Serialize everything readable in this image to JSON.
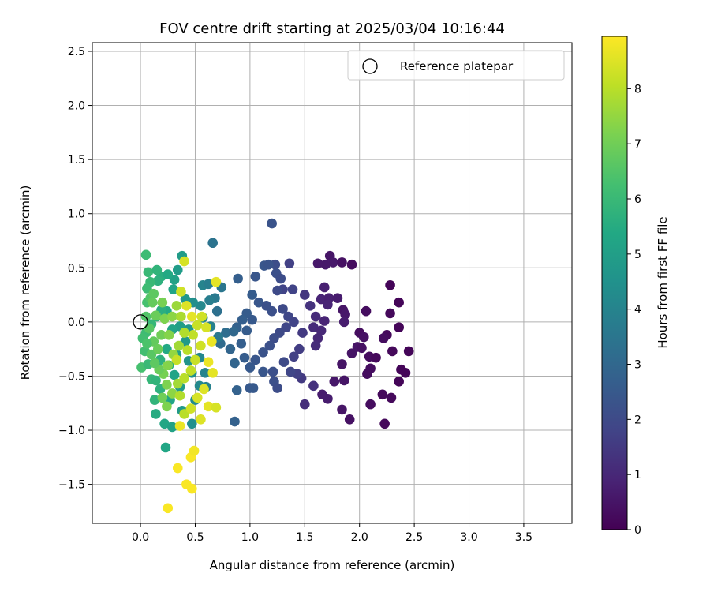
{
  "chart_data": {
    "type": "scatter",
    "title": "FOV centre drift starting at 2025/03/04 10:16:44",
    "xlabel": "Angular distance from reference (arcmin)",
    "ylabel": "Rotation from reference (arcmin)",
    "xlim": [
      -0.44,
      3.94
    ],
    "ylim": [
      -1.86,
      2.58
    ],
    "xticks": [
      "0.0",
      "0.5",
      "1.0",
      "1.5",
      "2.0",
      "2.5",
      "3.0",
      "3.5"
    ],
    "yticks": [
      "−1.5",
      "−1.0",
      "−0.5",
      "0.0",
      "0.5",
      "1.0",
      "1.5",
      "2.0",
      "2.5"
    ],
    "grid": true,
    "legend": {
      "placement": "top-right",
      "label": "Reference platepar"
    },
    "reference_point": {
      "x": 0.0,
      "y": 0.0
    },
    "colorbar": {
      "label": "Hours from first FF file",
      "colormap": "viridis",
      "range": [
        0,
        8.95
      ],
      "ticks": [
        "0",
        "1",
        "2",
        "3",
        "4",
        "5",
        "6",
        "7",
        "8"
      ]
    },
    "points": [
      {
        "x": 1.73,
        "y": 0.61,
        "h": 0.5
      },
      {
        "x": 1.62,
        "y": 0.54,
        "h": 0.6
      },
      {
        "x": 1.76,
        "y": 0.55,
        "h": 0.6
      },
      {
        "x": 1.84,
        "y": 0.55,
        "h": 0.4
      },
      {
        "x": 1.93,
        "y": 0.53,
        "h": 0.3
      },
      {
        "x": 1.69,
        "y": 0.53,
        "h": 0.6
      },
      {
        "x": 1.68,
        "y": 0.32,
        "h": 0.8
      },
      {
        "x": 1.65,
        "y": 0.21,
        "h": 0.9
      },
      {
        "x": 1.72,
        "y": 0.22,
        "h": 0.8
      },
      {
        "x": 1.8,
        "y": 0.22,
        "h": 0.7
      },
      {
        "x": 1.71,
        "y": 0.16,
        "h": 0.9
      },
      {
        "x": 1.85,
        "y": 0.11,
        "h": 0.5
      },
      {
        "x": 1.87,
        "y": 0.07,
        "h": 0.6
      },
      {
        "x": 1.86,
        "y": 0.0,
        "h": 0.7
      },
      {
        "x": 2.06,
        "y": 0.1,
        "h": 0.3
      },
      {
        "x": 2.28,
        "y": 0.34,
        "h": 0.1
      },
      {
        "x": 2.36,
        "y": 0.18,
        "h": 0.1
      },
      {
        "x": 2.28,
        "y": 0.08,
        "h": 0.2
      },
      {
        "x": 2.36,
        "y": -0.05,
        "h": 0.1
      },
      {
        "x": 2.25,
        "y": -0.12,
        "h": 0.2
      },
      {
        "x": 2.22,
        "y": -0.15,
        "h": 0.3
      },
      {
        "x": 2.0,
        "y": -0.1,
        "h": 0.3
      },
      {
        "x": 2.04,
        "y": -0.14,
        "h": 0.4
      },
      {
        "x": 1.98,
        "y": -0.23,
        "h": 0.5
      },
      {
        "x": 2.02,
        "y": -0.24,
        "h": 0.4
      },
      {
        "x": 1.93,
        "y": -0.29,
        "h": 0.5
      },
      {
        "x": 2.09,
        "y": -0.32,
        "h": 0.3
      },
      {
        "x": 2.15,
        "y": -0.33,
        "h": 0.2
      },
      {
        "x": 2.3,
        "y": -0.27,
        "h": 0.2
      },
      {
        "x": 2.45,
        "y": -0.27,
        "h": 0.1
      },
      {
        "x": 2.38,
        "y": -0.44,
        "h": 0.1
      },
      {
        "x": 2.42,
        "y": -0.47,
        "h": 0.1
      },
      {
        "x": 2.36,
        "y": -0.55,
        "h": 0.1
      },
      {
        "x": 2.1,
        "y": -0.43,
        "h": 0.3
      },
      {
        "x": 2.07,
        "y": -0.48,
        "h": 0.3
      },
      {
        "x": 1.84,
        "y": -0.39,
        "h": 0.5
      },
      {
        "x": 1.86,
        "y": -0.54,
        "h": 0.5
      },
      {
        "x": 1.77,
        "y": -0.55,
        "h": 0.6
      },
      {
        "x": 1.71,
        "y": -0.71,
        "h": 0.7
      },
      {
        "x": 1.66,
        "y": -0.67,
        "h": 0.7
      },
      {
        "x": 1.84,
        "y": -0.81,
        "h": 0.5
      },
      {
        "x": 1.91,
        "y": -0.9,
        "h": 0.4
      },
      {
        "x": 2.1,
        "y": -0.76,
        "h": 0.3
      },
      {
        "x": 2.21,
        "y": -0.67,
        "h": 0.2
      },
      {
        "x": 2.29,
        "y": -0.7,
        "h": 0.2
      },
      {
        "x": 2.23,
        "y": -0.94,
        "h": 0.2
      },
      {
        "x": 1.58,
        "y": -0.59,
        "h": 1.3
      },
      {
        "x": 1.5,
        "y": -0.76,
        "h": 1.2
      },
      {
        "x": 1.47,
        "y": -0.52,
        "h": 1.5
      },
      {
        "x": 1.43,
        "y": -0.48,
        "h": 1.7
      },
      {
        "x": 1.58,
        "y": -0.05,
        "h": 1.1
      },
      {
        "x": 1.62,
        "y": -0.15,
        "h": 1.0
      },
      {
        "x": 1.6,
        "y": -0.22,
        "h": 1.1
      },
      {
        "x": 1.65,
        "y": -0.08,
        "h": 1.0
      },
      {
        "x": 1.68,
        "y": 0.01,
        "h": 0.9
      },
      {
        "x": 1.6,
        "y": 0.05,
        "h": 1.1
      },
      {
        "x": 1.55,
        "y": 0.15,
        "h": 1.3
      },
      {
        "x": 1.5,
        "y": 0.25,
        "h": 1.4
      },
      {
        "x": 1.48,
        "y": -0.1,
        "h": 1.5
      },
      {
        "x": 1.45,
        "y": -0.25,
        "h": 1.6
      },
      {
        "x": 1.4,
        "y": -0.32,
        "h": 1.7
      },
      {
        "x": 1.36,
        "y": 0.54,
        "h": 1.7
      },
      {
        "x": 1.39,
        "y": 0.3,
        "h": 1.8
      },
      {
        "x": 1.3,
        "y": 0.3,
        "h": 1.8
      },
      {
        "x": 1.25,
        "y": 0.29,
        "h": 2.0
      },
      {
        "x": 1.23,
        "y": 0.53,
        "h": 2.1
      },
      {
        "x": 1.13,
        "y": 0.52,
        "h": 2.4
      },
      {
        "x": 1.17,
        "y": 0.53,
        "h": 2.3
      },
      {
        "x": 1.24,
        "y": 0.45,
        "h": 2.2
      },
      {
        "x": 1.28,
        "y": 0.4,
        "h": 2.1
      },
      {
        "x": 1.05,
        "y": 0.42,
        "h": 2.4
      },
      {
        "x": 0.89,
        "y": 0.4,
        "h": 2.7
      },
      {
        "x": 1.2,
        "y": 0.91,
        "h": 2.3
      },
      {
        "x": 1.02,
        "y": 0.25,
        "h": 2.6
      },
      {
        "x": 1.08,
        "y": 0.18,
        "h": 2.4
      },
      {
        "x": 1.15,
        "y": 0.15,
        "h": 2.2
      },
      {
        "x": 1.2,
        "y": 0.1,
        "h": 2.2
      },
      {
        "x": 1.3,
        "y": 0.12,
        "h": 2.0
      },
      {
        "x": 1.35,
        "y": 0.05,
        "h": 1.9
      },
      {
        "x": 1.4,
        "y": 0.0,
        "h": 1.8
      },
      {
        "x": 1.33,
        "y": -0.05,
        "h": 1.9
      },
      {
        "x": 1.27,
        "y": -0.1,
        "h": 2.0
      },
      {
        "x": 1.22,
        "y": -0.15,
        "h": 2.1
      },
      {
        "x": 1.18,
        "y": -0.22,
        "h": 2.2
      },
      {
        "x": 1.12,
        "y": -0.28,
        "h": 2.3
      },
      {
        "x": 1.05,
        "y": -0.35,
        "h": 2.4
      },
      {
        "x": 1.0,
        "y": -0.42,
        "h": 2.5
      },
      {
        "x": 0.95,
        "y": -0.33,
        "h": 2.6
      },
      {
        "x": 0.92,
        "y": -0.2,
        "h": 2.7
      },
      {
        "x": 0.97,
        "y": -0.08,
        "h": 2.6
      },
      {
        "x": 1.02,
        "y": 0.02,
        "h": 2.5
      },
      {
        "x": 0.97,
        "y": 0.08,
        "h": 2.6
      },
      {
        "x": 0.93,
        "y": 0.02,
        "h": 2.7
      },
      {
        "x": 0.88,
        "y": -0.05,
        "h": 2.8
      },
      {
        "x": 1.12,
        "y": -0.46,
        "h": 2.4
      },
      {
        "x": 1.21,
        "y": -0.46,
        "h": 2.2
      },
      {
        "x": 1.31,
        "y": -0.37,
        "h": 2.0
      },
      {
        "x": 1.37,
        "y": -0.46,
        "h": 1.9
      },
      {
        "x": 1.22,
        "y": -0.55,
        "h": 2.2
      },
      {
        "x": 1.25,
        "y": -0.61,
        "h": 2.1
      },
      {
        "x": 1.0,
        "y": -0.61,
        "h": 2.5
      },
      {
        "x": 1.03,
        "y": -0.61,
        "h": 2.5
      },
      {
        "x": 0.88,
        "y": -0.63,
        "h": 2.8
      },
      {
        "x": 0.86,
        "y": -0.92,
        "h": 2.8
      },
      {
        "x": 0.73,
        "y": -0.2,
        "h": 3.1
      },
      {
        "x": 0.82,
        "y": -0.25,
        "h": 2.9
      },
      {
        "x": 0.86,
        "y": -0.38,
        "h": 2.9
      },
      {
        "x": 0.78,
        "y": -0.1,
        "h": 3.2
      },
      {
        "x": 0.85,
        "y": -0.09,
        "h": 3.0
      },
      {
        "x": 0.7,
        "y": 0.1,
        "h": 3.3
      },
      {
        "x": 0.74,
        "y": 0.32,
        "h": 3.5
      },
      {
        "x": 0.66,
        "y": 0.73,
        "h": 3.4
      },
      {
        "x": 0.68,
        "y": 0.22,
        "h": 3.6
      },
      {
        "x": 0.57,
        "y": 0.34,
        "h": 4.0
      },
      {
        "x": 0.62,
        "y": 0.35,
        "h": 3.8
      },
      {
        "x": 0.63,
        "y": 0.2,
        "h": 3.8
      },
      {
        "x": 0.55,
        "y": 0.15,
        "h": 4.2
      },
      {
        "x": 0.48,
        "y": 0.18,
        "h": 4.4
      },
      {
        "x": 0.41,
        "y": 0.21,
        "h": 4.7
      },
      {
        "x": 0.57,
        "y": 0.04,
        "h": 4.1
      },
      {
        "x": 0.64,
        "y": -0.04,
        "h": 3.9
      },
      {
        "x": 0.71,
        "y": -0.14,
        "h": 3.6
      },
      {
        "x": 0.54,
        "y": -0.33,
        "h": 4.1
      },
      {
        "x": 0.59,
        "y": -0.47,
        "h": 4.0
      },
      {
        "x": 0.6,
        "y": -0.6,
        "h": 3.9
      },
      {
        "x": 0.47,
        "y": -0.47,
        "h": 4.4
      },
      {
        "x": 0.44,
        "y": -0.36,
        "h": 4.6
      },
      {
        "x": 0.41,
        "y": -0.18,
        "h": 4.8
      },
      {
        "x": 0.44,
        "y": -0.07,
        "h": 4.7
      },
      {
        "x": 0.36,
        "y": -0.04,
        "h": 5.0
      },
      {
        "x": 0.29,
        "y": -0.07,
        "h": 5.2
      },
      {
        "x": 0.24,
        "y": 0.1,
        "h": 5.4
      },
      {
        "x": 0.3,
        "y": 0.3,
        "h": 5.2
      },
      {
        "x": 0.31,
        "y": 0.39,
        "h": 5.1
      },
      {
        "x": 0.38,
        "y": 0.61,
        "h": 4.9
      },
      {
        "x": 0.34,
        "y": 0.48,
        "h": 4.9
      },
      {
        "x": 0.19,
        "y": 0.42,
        "h": 5.6
      },
      {
        "x": 0.16,
        "y": 0.38,
        "h": 5.7
      },
      {
        "x": 0.09,
        "y": 0.37,
        "h": 6.0
      },
      {
        "x": 0.06,
        "y": 0.31,
        "h": 6.1
      },
      {
        "x": 0.07,
        "y": 0.46,
        "h": 6.0
      },
      {
        "x": 0.05,
        "y": 0.62,
        "h": 6.1
      },
      {
        "x": 0.15,
        "y": 0.48,
        "h": 5.8
      },
      {
        "x": 0.25,
        "y": 0.44,
        "h": 5.4
      },
      {
        "x": 0.19,
        "y": 0.11,
        "h": 5.6
      },
      {
        "x": 0.15,
        "y": 0.05,
        "h": 5.8
      },
      {
        "x": 0.1,
        "y": -0.02,
        "h": 5.9
      },
      {
        "x": 0.05,
        "y": -0.1,
        "h": 6.1
      },
      {
        "x": 0.02,
        "y": -0.15,
        "h": 6.2
      },
      {
        "x": 0.04,
        "y": -0.27,
        "h": 6.2
      },
      {
        "x": 0.01,
        "y": -0.42,
        "h": 6.3
      },
      {
        "x": 0.07,
        "y": -0.39,
        "h": 6.0
      },
      {
        "x": 0.1,
        "y": -0.53,
        "h": 5.9
      },
      {
        "x": 0.14,
        "y": -0.54,
        "h": 5.8
      },
      {
        "x": 0.18,
        "y": -0.62,
        "h": 5.7
      },
      {
        "x": 0.13,
        "y": -0.72,
        "h": 5.8
      },
      {
        "x": 0.14,
        "y": -0.85,
        "h": 5.5
      },
      {
        "x": 0.22,
        "y": -0.94,
        "h": 5.3
      },
      {
        "x": 0.29,
        "y": -0.97,
        "h": 5.1
      },
      {
        "x": 0.23,
        "y": -1.16,
        "h": 5.3
      },
      {
        "x": 0.18,
        "y": -0.35,
        "h": 5.7
      },
      {
        "x": 0.24,
        "y": -0.25,
        "h": 5.4
      },
      {
        "x": 0.26,
        "y": -0.4,
        "h": 5.5
      },
      {
        "x": 0.31,
        "y": -0.49,
        "h": 5.2
      },
      {
        "x": 0.33,
        "y": -0.3,
        "h": 5.0
      },
      {
        "x": 0.27,
        "y": -0.72,
        "h": 5.2
      },
      {
        "x": 0.36,
        "y": -0.6,
        "h": 4.9
      },
      {
        "x": 0.5,
        "y": -0.72,
        "h": 4.3
      },
      {
        "x": 0.54,
        "y": -0.59,
        "h": 4.2
      },
      {
        "x": 0.47,
        "y": -0.94,
        "h": 4.4
      },
      {
        "x": 0.38,
        "y": -0.82,
        "h": 4.8
      },
      {
        "x": 0.06,
        "y": 0.18,
        "h": 6.3
      },
      {
        "x": 0.09,
        "y": 0.22,
        "h": 6.5
      },
      {
        "x": 0.12,
        "y": 0.26,
        "h": 6.7
      },
      {
        "x": 0.11,
        "y": 0.18,
        "h": 6.8
      },
      {
        "x": 0.05,
        "y": 0.05,
        "h": 6.5
      },
      {
        "x": 0.08,
        "y": -0.06,
        "h": 6.6
      },
      {
        "x": 0.12,
        "y": -0.18,
        "h": 6.8
      },
      {
        "x": 0.06,
        "y": -0.2,
        "h": 6.4
      },
      {
        "x": 0.1,
        "y": -0.3,
        "h": 6.6
      },
      {
        "x": 0.16,
        "y": -0.25,
        "h": 6.9
      },
      {
        "x": 0.19,
        "y": -0.12,
        "h": 7.0
      },
      {
        "x": 0.14,
        "y": 0.06,
        "h": 6.9
      },
      {
        "x": 0.2,
        "y": 0.18,
        "h": 7.1
      },
      {
        "x": 0.22,
        "y": 0.03,
        "h": 7.2
      },
      {
        "x": 0.26,
        "y": -0.12,
        "h": 7.3
      },
      {
        "x": 0.29,
        "y": 0.05,
        "h": 7.4
      },
      {
        "x": 0.33,
        "y": 0.15,
        "h": 7.6
      },
      {
        "x": 0.37,
        "y": 0.05,
        "h": 7.8
      },
      {
        "x": 0.4,
        "y": -0.1,
        "h": 7.9
      },
      {
        "x": 0.35,
        "y": -0.22,
        "h": 7.7
      },
      {
        "x": 0.3,
        "y": -0.3,
        "h": 7.5
      },
      {
        "x": 0.25,
        "y": -0.4,
        "h": 7.3
      },
      {
        "x": 0.21,
        "y": -0.48,
        "h": 7.1
      },
      {
        "x": 0.17,
        "y": -0.44,
        "h": 6.9
      },
      {
        "x": 0.13,
        "y": -0.38,
        "h": 6.7
      },
      {
        "x": 0.24,
        "y": -0.58,
        "h": 7.2
      },
      {
        "x": 0.29,
        "y": -0.66,
        "h": 7.4
      },
      {
        "x": 0.34,
        "y": -0.57,
        "h": 7.7
      },
      {
        "x": 0.24,
        "y": -0.78,
        "h": 7.2
      },
      {
        "x": 0.2,
        "y": -0.7,
        "h": 7.0
      },
      {
        "x": 0.43,
        "y": -0.26,
        "h": 8.0
      },
      {
        "x": 0.48,
        "y": -0.12,
        "h": 8.1
      },
      {
        "x": 0.52,
        "y": -0.03,
        "h": 8.2
      },
      {
        "x": 0.56,
        "y": 0.05,
        "h": 8.3
      },
      {
        "x": 0.6,
        "y": -0.05,
        "h": 8.4
      },
      {
        "x": 0.55,
        "y": -0.22,
        "h": 8.3
      },
      {
        "x": 0.5,
        "y": -0.35,
        "h": 8.2
      },
      {
        "x": 0.46,
        "y": -0.45,
        "h": 8.1
      },
      {
        "x": 0.4,
        "y": -0.52,
        "h": 8.0
      },
      {
        "x": 0.36,
        "y": -0.68,
        "h": 7.9
      },
      {
        "x": 0.4,
        "y": -0.85,
        "h": 8.0
      },
      {
        "x": 0.46,
        "y": -0.8,
        "h": 8.3
      },
      {
        "x": 0.52,
        "y": -0.7,
        "h": 8.4
      },
      {
        "x": 0.58,
        "y": -0.62,
        "h": 8.5
      },
      {
        "x": 0.62,
        "y": -0.78,
        "h": 8.6
      },
      {
        "x": 0.55,
        "y": -0.9,
        "h": 8.5
      },
      {
        "x": 0.69,
        "y": -0.79,
        "h": 8.4
      },
      {
        "x": 0.66,
        "y": -0.47,
        "h": 8.6
      },
      {
        "x": 0.62,
        "y": -0.37,
        "h": 8.7
      },
      {
        "x": 0.65,
        "y": -0.18,
        "h": 8.7
      },
      {
        "x": 0.69,
        "y": 0.37,
        "h": 8.6
      },
      {
        "x": 0.4,
        "y": 0.56,
        "h": 8.4
      },
      {
        "x": 0.37,
        "y": 0.28,
        "h": 8.3
      },
      {
        "x": 0.42,
        "y": 0.15,
        "h": 8.5
      },
      {
        "x": 0.47,
        "y": 0.05,
        "h": 8.6
      },
      {
        "x": 0.33,
        "y": -0.35,
        "h": 8.2
      },
      {
        "x": 0.36,
        "y": -0.96,
        "h": 8.7
      },
      {
        "x": 0.34,
        "y": -1.35,
        "h": 8.9
      },
      {
        "x": 0.46,
        "y": -1.25,
        "h": 8.9
      },
      {
        "x": 0.49,
        "y": -1.19,
        "h": 8.8
      },
      {
        "x": 0.42,
        "y": -1.5,
        "h": 8.9
      },
      {
        "x": 0.47,
        "y": -1.54,
        "h": 8.9
      },
      {
        "x": 0.25,
        "y": -1.72,
        "h": 8.9
      }
    ]
  }
}
